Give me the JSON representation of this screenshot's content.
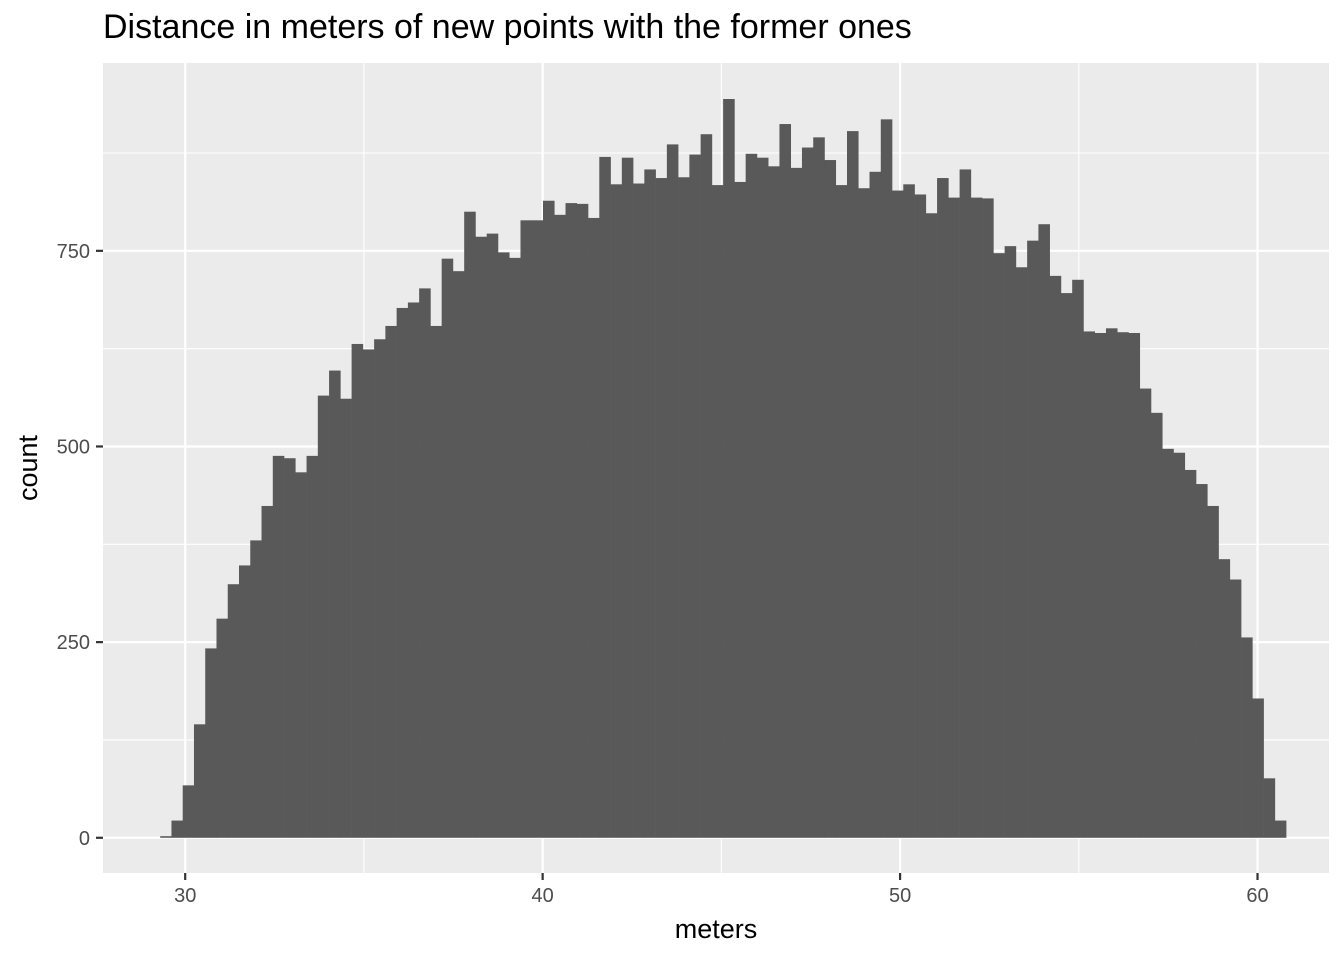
{
  "chart_data": {
    "type": "bar",
    "title": "Distance in meters of new points with the former ones",
    "xlabel": "meters",
    "ylabel": "count",
    "xlim": [
      27.7,
      62.0
    ],
    "ylim": [
      -45,
      990
    ],
    "x_ticks": [
      30,
      40,
      50,
      60
    ],
    "y_ticks": [
      0,
      250,
      500,
      750
    ],
    "grid": true,
    "bin_start": 29.3,
    "bin_width": 0.315,
    "values": [
      2,
      22,
      67,
      145,
      242,
      280,
      324,
      348,
      380,
      424,
      488,
      485,
      467,
      488,
      565,
      597,
      561,
      631,
      624,
      637,
      654,
      677,
      684,
      702,
      654,
      740,
      724,
      800,
      768,
      772,
      748,
      741,
      789,
      789,
      814,
      796,
      811,
      810,
      792,
      870,
      835,
      869,
      836,
      854,
      843,
      886,
      844,
      873,
      899,
      834,
      944,
      838,
      874,
      869,
      858,
      912,
      856,
      882,
      895,
      866,
      834,
      903,
      830,
      851,
      918,
      827,
      835,
      822,
      798,
      843,
      818,
      854,
      818,
      817,
      747,
      756,
      729,
      763,
      784,
      718,
      696,
      713,
      647,
      645,
      651,
      646,
      645,
      574,
      543,
      497,
      492,
      470,
      452,
      424,
      356,
      330,
      256,
      178,
      76,
      22
    ],
    "bar_color": "#595959",
    "panel_color": "#ebebeb",
    "grid_color": "#ffffff"
  }
}
